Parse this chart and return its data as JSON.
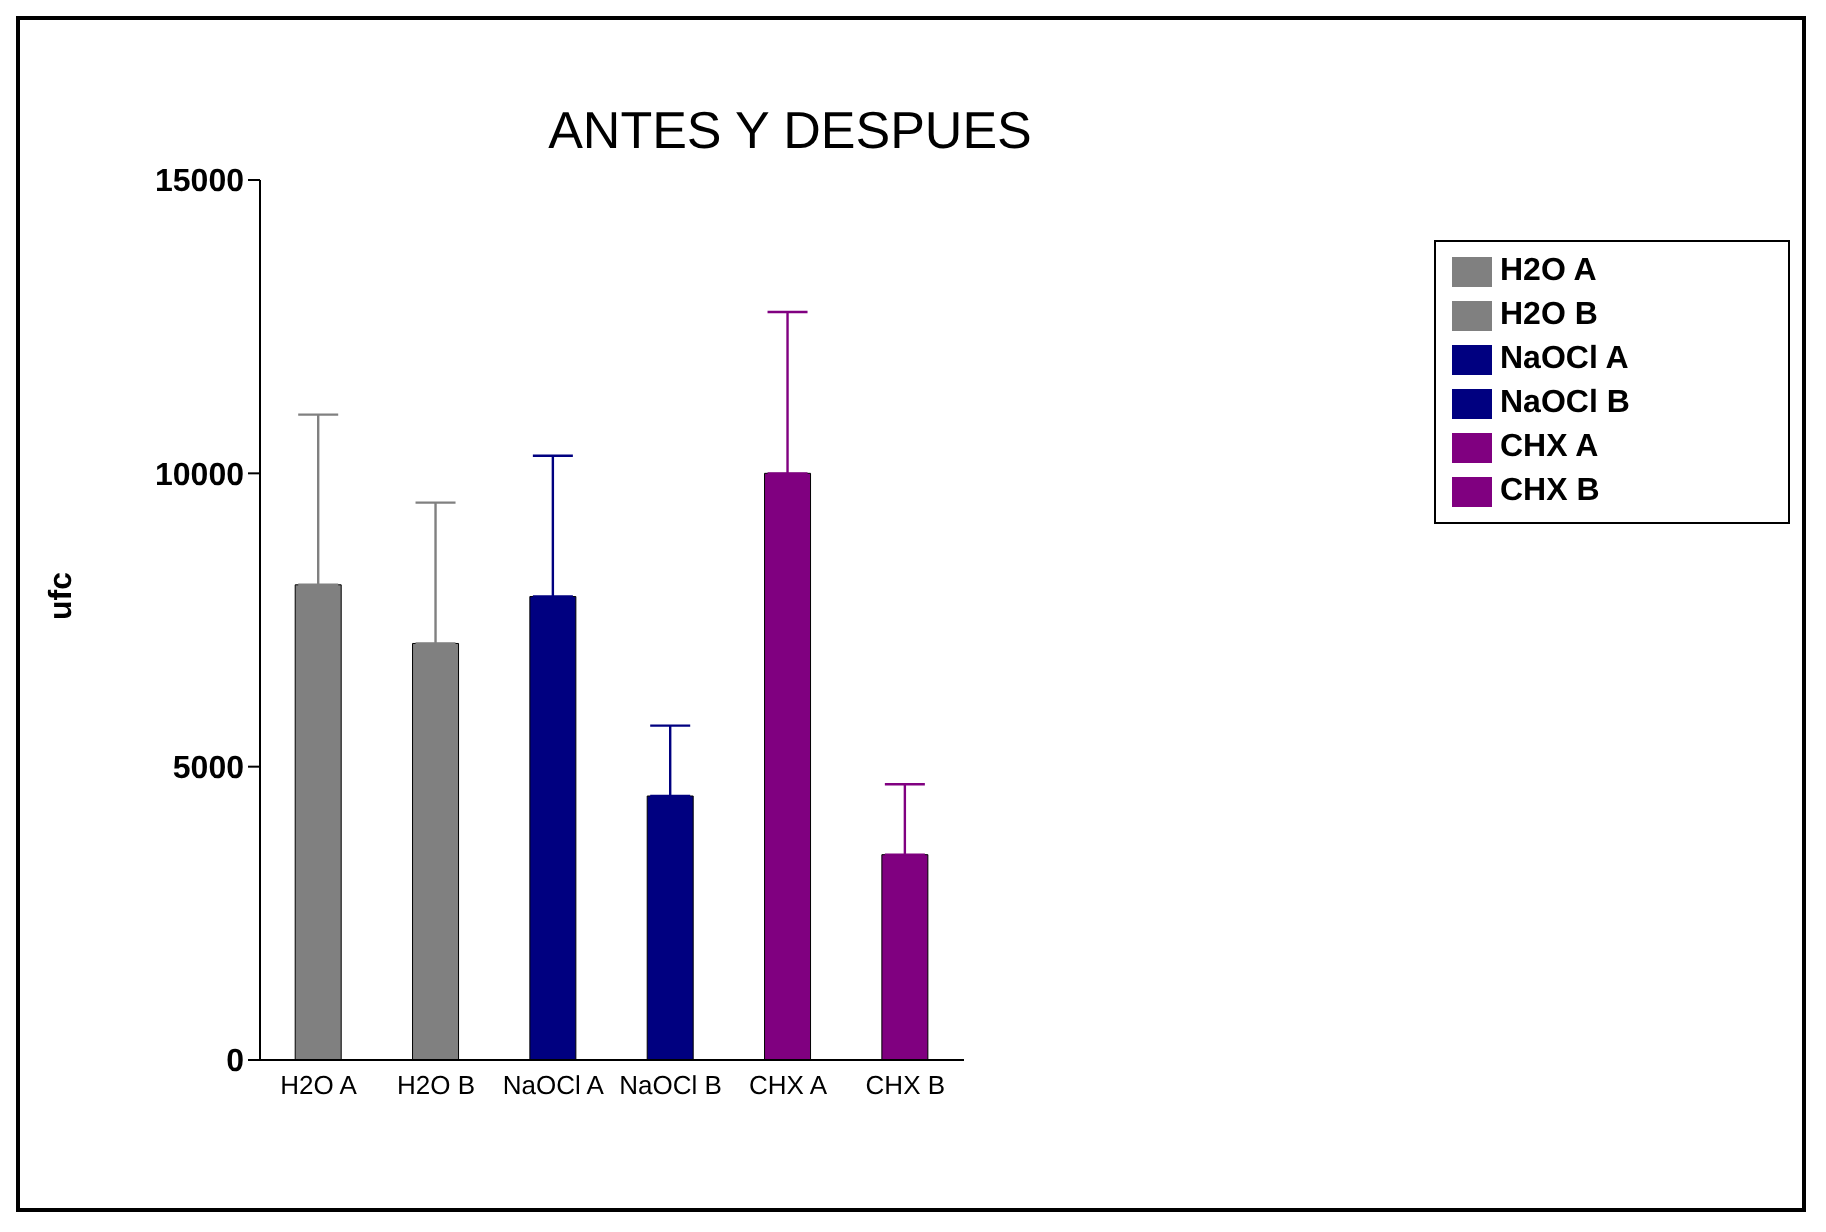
{
  "chart_data": {
    "type": "bar",
    "title": "ANTES Y DESPUES",
    "ylabel": "ufc",
    "categories": [
      "H2O A",
      "H2O B",
      "NaOCl A",
      "NaOCl B",
      "CHX A",
      "CHX B"
    ],
    "series": [
      {
        "name": "H2O A",
        "color": "#808080",
        "values": [
          8100,
          null,
          null,
          null,
          null,
          null
        ],
        "errors": [
          [
            8100,
            11000
          ],
          null,
          null,
          null,
          null,
          null
        ]
      },
      {
        "name": "H2O B",
        "color": "#808080",
        "values": [
          null,
          7100,
          null,
          null,
          null,
          null
        ],
        "errors": [
          null,
          [
            7100,
            9500
          ],
          null,
          null,
          null,
          null
        ]
      },
      {
        "name": "NaOCl A",
        "color": "#000080",
        "values": [
          null,
          null,
          7900,
          null,
          null,
          null
        ],
        "errors": [
          null,
          null,
          [
            7900,
            10300
          ],
          null,
          null,
          null
        ]
      },
      {
        "name": "NaOCl B",
        "color": "#000080",
        "values": [
          null,
          null,
          null,
          4500,
          null,
          null
        ],
        "errors": [
          null,
          null,
          null,
          [
            4500,
            5700
          ],
          null,
          null
        ]
      },
      {
        "name": "CHX A",
        "color": "#800080",
        "values": [
          null,
          null,
          null,
          null,
          10000,
          null
        ],
        "errors": [
          null,
          null,
          null,
          null,
          [
            10000,
            12750
          ],
          null
        ]
      },
      {
        "name": "CHX B",
        "color": "#800080",
        "values": [
          null,
          null,
          null,
          null,
          null,
          3500
        ],
        "errors": [
          null,
          null,
          null,
          null,
          null,
          [
            3500,
            4700
          ]
        ]
      }
    ],
    "ylim": [
      0,
      15000
    ],
    "yticks": [
      0,
      5000,
      10000,
      15000
    ],
    "legend": "top right"
  }
}
